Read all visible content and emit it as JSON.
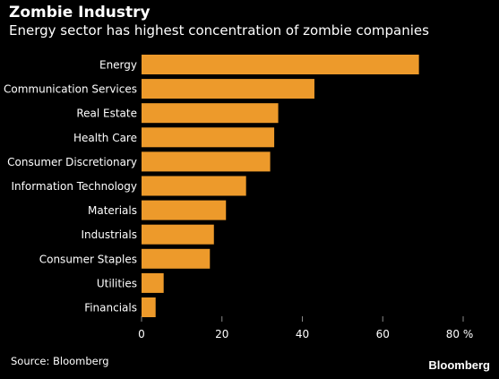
{
  "header": {
    "title": "Zombie Industry",
    "subtitle": "Energy sector has highest concentration of zombie companies"
  },
  "footer": {
    "source": "Source: Bloomberg",
    "brand": "Bloomberg"
  },
  "colors": {
    "background": "#000000",
    "bar": "#ED9A2B",
    "text": "#FFFFFF",
    "axis": "#888888"
  },
  "chart_data": {
    "type": "bar",
    "orientation": "horizontal",
    "categories": [
      "Energy",
      "Communication Services",
      "Real Estate",
      "Health Care",
      "Consumer Discretionary",
      "Information Technology",
      "Materials",
      "Industrials",
      "Consumer Staples",
      "Utilities",
      "Financials"
    ],
    "values": [
      69,
      43,
      34,
      33,
      32,
      26,
      21,
      18,
      17,
      5.5,
      3.5
    ],
    "xlim": [
      0,
      80
    ],
    "xticks": [
      0,
      20,
      40,
      60,
      80
    ],
    "xtick_labels": [
      "0",
      "20",
      "40",
      "60",
      "80 %"
    ],
    "grid": false
  }
}
